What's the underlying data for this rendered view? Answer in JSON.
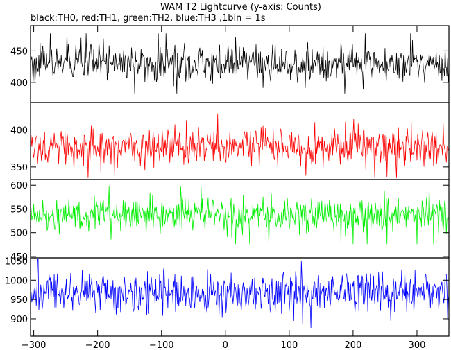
{
  "chart_data": {
    "type": "line",
    "title": "WAM T2 Lightcurve (y-axis: Counts)",
    "subtitle": "black:TH0, red:TH1, green:TH2, blue:TH3 ,1bin = 1s",
    "xlim": [
      -305,
      350
    ],
    "x_ticks": [
      -300,
      -200,
      -100,
      0,
      100,
      200,
      300
    ],
    "x_tick_labels": [
      "−300",
      "−200",
      "−100",
      "0",
      "100",
      "200",
      "300"
    ],
    "grid": false,
    "series": [
      {
        "name": "TH0",
        "color": "#000000",
        "x_step": 1,
        "ylim": [
          368,
          490
        ],
        "y_ticks": [
          400,
          450
        ],
        "y_tick_labels": [
          "400",
          "450"
        ],
        "mean": 430,
        "spread": 14,
        "min": 370,
        "max": 488
      },
      {
        "name": "TH1",
        "color": "#ff0000",
        "x_step": 1,
        "ylim": [
          333,
          437
        ],
        "y_ticks": [
          350,
          400
        ],
        "y_tick_labels": [
          "350",
          "400"
        ],
        "mean": 378,
        "spread": 13,
        "min": 335,
        "max": 436
      },
      {
        "name": "TH2",
        "color": "#00ee00",
        "x_step": 1,
        "ylim": [
          447,
          612
        ],
        "y_ticks": [
          450,
          500,
          550,
          600
        ],
        "y_tick_labels": [
          "450",
          "500",
          "550",
          "600"
        ],
        "mean": 537,
        "spread": 18,
        "min": 455,
        "max": 610
      },
      {
        "name": "TH3",
        "color": "#0000ff",
        "x_step": 1,
        "ylim": [
          855,
          1058
        ],
        "y_ticks": [
          900,
          950,
          1000,
          1050
        ],
        "y_tick_labels": [
          "900",
          "950",
          "1000",
          "1050"
        ],
        "mean": 965,
        "spread": 26,
        "min": 870,
        "max": 1055
      }
    ]
  }
}
